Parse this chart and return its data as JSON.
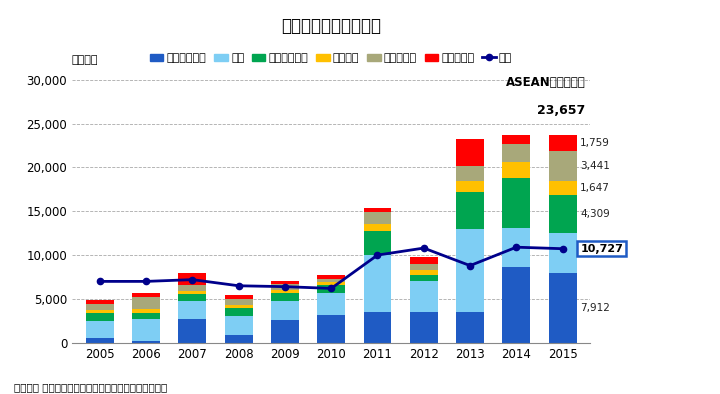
{
  "title": "日本からの直接投資額",
  "ylabel": "（億円）",
  "footnote": "（出所） 財務省より住友商事グローバルリサーチ作成",
  "years": [
    2005,
    2006,
    2007,
    2008,
    2009,
    2010,
    2011,
    2012,
    2013,
    2014,
    2015
  ],
  "series": {
    "シンガポール": [
      500,
      200,
      2700,
      900,
      2600,
      3200,
      3500,
      3500,
      3500,
      8600,
      7912
    ],
    "タイ": [
      2000,
      2500,
      2100,
      2200,
      2200,
      2500,
      6500,
      3500,
      9500,
      4500,
      4589
    ],
    "インドネシア": [
      900,
      700,
      800,
      900,
      900,
      900,
      2700,
      700,
      4200,
      5700,
      4309
    ],
    "ベトナム": [
      300,
      400,
      300,
      300,
      300,
      300,
      800,
      600,
      1200,
      1800,
      1647
    ],
    "マレーシア": [
      700,
      1400,
      700,
      700,
      700,
      400,
      1400,
      700,
      1800,
      2100,
      3441
    ],
    "フィリピン": [
      500,
      500,
      1300,
      400,
      400,
      400,
      500,
      800,
      3000,
      1000,
      1759
    ]
  },
  "china_line": [
    7000,
    7000,
    7200,
    6500,
    6400,
    6200,
    10000,
    10800,
    8800,
    10900,
    10727
  ],
  "colors": {
    "シンガポール": "#1F5BC4",
    "タイ": "#7ECEF4",
    "インドネシア": "#00A550",
    "ベトナム": "#FFC000",
    "マレーシア": "#A8A87A",
    "フィリピン": "#FF0000"
  },
  "china_color": "#00008B",
  "asean_line1": "ASEANへの投資額",
  "asean_line2": "23,657",
  "annotations_2015": [
    {
      "name": "シンガポール",
      "val": 7912,
      "color": "#FFFFFF"
    },
    {
      "name": "タイ",
      "val": 4589,
      "color": "#333333"
    },
    {
      "name": "インドネシア",
      "val": 4309,
      "color": "#333333"
    },
    {
      "name": "ベトナム",
      "val": 1647,
      "color": "#333333"
    },
    {
      "name": "マレーシア",
      "val": 3441,
      "color": "#333333"
    },
    {
      "name": "フィリピン",
      "val": 1759,
      "color": "#333333"
    }
  ],
  "china_ann": 10727,
  "ylim": [
    0,
    31000
  ],
  "yticks": [
    0,
    5000,
    10000,
    15000,
    20000,
    25000,
    30000
  ],
  "background_color": "#FFFFFF",
  "grid_color": "#AAAAAA"
}
